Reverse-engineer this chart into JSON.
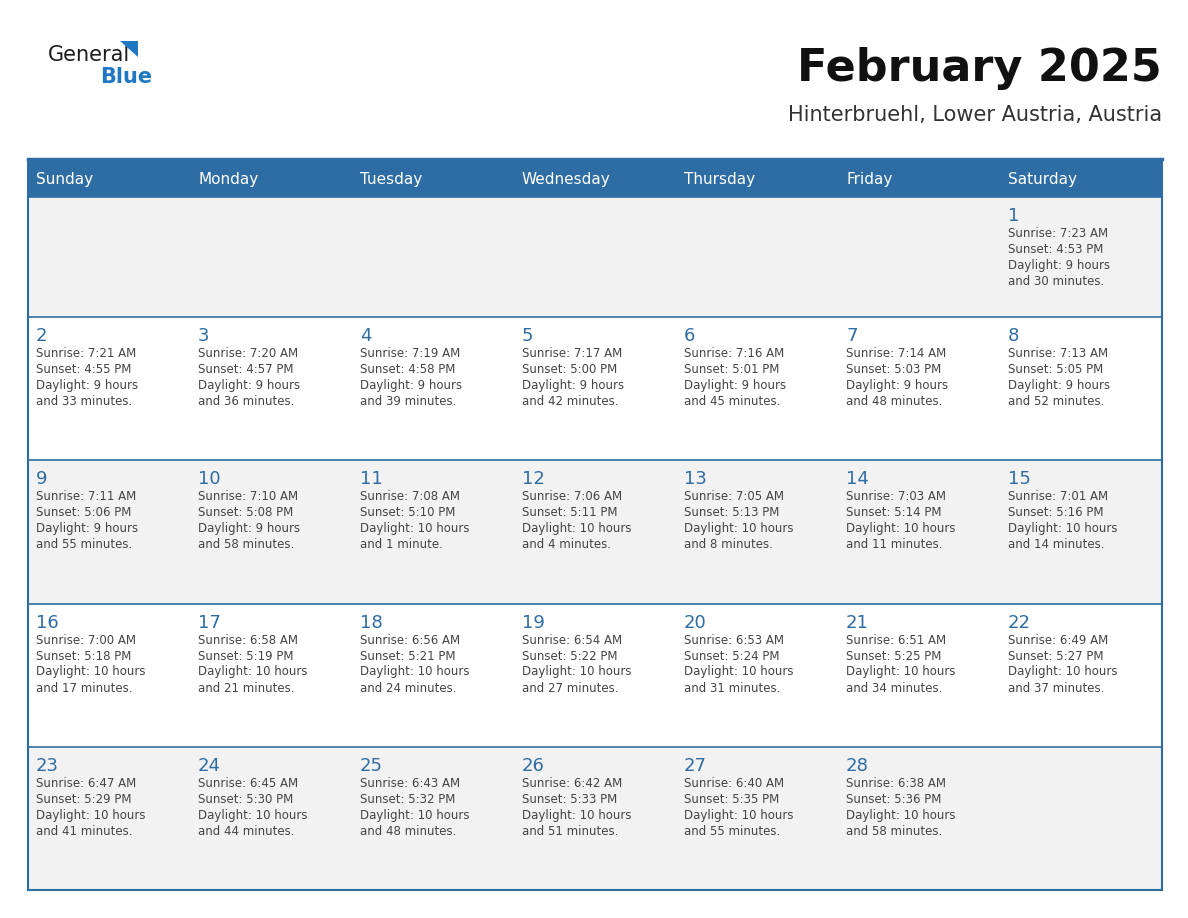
{
  "title": "February 2025",
  "subtitle": "Hinterbruehl, Lower Austria, Austria",
  "days_of_week": [
    "Sunday",
    "Monday",
    "Tuesday",
    "Wednesday",
    "Thursday",
    "Friday",
    "Saturday"
  ],
  "header_bg": "#2E6DA4",
  "header_text": "#FFFFFF",
  "cell_bg_odd": "#F2F2F2",
  "cell_bg_even": "#FFFFFF",
  "day_number_color": "#2E6DA4",
  "text_color": "#444444",
  "line_color": "#2E6DA4",
  "logo_general_color": "#1a1a1a",
  "logo_blue_color": "#2077C2",
  "calendar_data": [
    [
      {
        "day": null,
        "info": null
      },
      {
        "day": null,
        "info": null
      },
      {
        "day": null,
        "info": null
      },
      {
        "day": null,
        "info": null
      },
      {
        "day": null,
        "info": null
      },
      {
        "day": null,
        "info": null
      },
      {
        "day": 1,
        "info": "Sunrise: 7:23 AM\nSunset: 4:53 PM\nDaylight: 9 hours\nand 30 minutes."
      }
    ],
    [
      {
        "day": 2,
        "info": "Sunrise: 7:21 AM\nSunset: 4:55 PM\nDaylight: 9 hours\nand 33 minutes."
      },
      {
        "day": 3,
        "info": "Sunrise: 7:20 AM\nSunset: 4:57 PM\nDaylight: 9 hours\nand 36 minutes."
      },
      {
        "day": 4,
        "info": "Sunrise: 7:19 AM\nSunset: 4:58 PM\nDaylight: 9 hours\nand 39 minutes."
      },
      {
        "day": 5,
        "info": "Sunrise: 7:17 AM\nSunset: 5:00 PM\nDaylight: 9 hours\nand 42 minutes."
      },
      {
        "day": 6,
        "info": "Sunrise: 7:16 AM\nSunset: 5:01 PM\nDaylight: 9 hours\nand 45 minutes."
      },
      {
        "day": 7,
        "info": "Sunrise: 7:14 AM\nSunset: 5:03 PM\nDaylight: 9 hours\nand 48 minutes."
      },
      {
        "day": 8,
        "info": "Sunrise: 7:13 AM\nSunset: 5:05 PM\nDaylight: 9 hours\nand 52 minutes."
      }
    ],
    [
      {
        "day": 9,
        "info": "Sunrise: 7:11 AM\nSunset: 5:06 PM\nDaylight: 9 hours\nand 55 minutes."
      },
      {
        "day": 10,
        "info": "Sunrise: 7:10 AM\nSunset: 5:08 PM\nDaylight: 9 hours\nand 58 minutes."
      },
      {
        "day": 11,
        "info": "Sunrise: 7:08 AM\nSunset: 5:10 PM\nDaylight: 10 hours\nand 1 minute."
      },
      {
        "day": 12,
        "info": "Sunrise: 7:06 AM\nSunset: 5:11 PM\nDaylight: 10 hours\nand 4 minutes."
      },
      {
        "day": 13,
        "info": "Sunrise: 7:05 AM\nSunset: 5:13 PM\nDaylight: 10 hours\nand 8 minutes."
      },
      {
        "day": 14,
        "info": "Sunrise: 7:03 AM\nSunset: 5:14 PM\nDaylight: 10 hours\nand 11 minutes."
      },
      {
        "day": 15,
        "info": "Sunrise: 7:01 AM\nSunset: 5:16 PM\nDaylight: 10 hours\nand 14 minutes."
      }
    ],
    [
      {
        "day": 16,
        "info": "Sunrise: 7:00 AM\nSunset: 5:18 PM\nDaylight: 10 hours\nand 17 minutes."
      },
      {
        "day": 17,
        "info": "Sunrise: 6:58 AM\nSunset: 5:19 PM\nDaylight: 10 hours\nand 21 minutes."
      },
      {
        "day": 18,
        "info": "Sunrise: 6:56 AM\nSunset: 5:21 PM\nDaylight: 10 hours\nand 24 minutes."
      },
      {
        "day": 19,
        "info": "Sunrise: 6:54 AM\nSunset: 5:22 PM\nDaylight: 10 hours\nand 27 minutes."
      },
      {
        "day": 20,
        "info": "Sunrise: 6:53 AM\nSunset: 5:24 PM\nDaylight: 10 hours\nand 31 minutes."
      },
      {
        "day": 21,
        "info": "Sunrise: 6:51 AM\nSunset: 5:25 PM\nDaylight: 10 hours\nand 34 minutes."
      },
      {
        "day": 22,
        "info": "Sunrise: 6:49 AM\nSunset: 5:27 PM\nDaylight: 10 hours\nand 37 minutes."
      }
    ],
    [
      {
        "day": 23,
        "info": "Sunrise: 6:47 AM\nSunset: 5:29 PM\nDaylight: 10 hours\nand 41 minutes."
      },
      {
        "day": 24,
        "info": "Sunrise: 6:45 AM\nSunset: 5:30 PM\nDaylight: 10 hours\nand 44 minutes."
      },
      {
        "day": 25,
        "info": "Sunrise: 6:43 AM\nSunset: 5:32 PM\nDaylight: 10 hours\nand 48 minutes."
      },
      {
        "day": 26,
        "info": "Sunrise: 6:42 AM\nSunset: 5:33 PM\nDaylight: 10 hours\nand 51 minutes."
      },
      {
        "day": 27,
        "info": "Sunrise: 6:40 AM\nSunset: 5:35 PM\nDaylight: 10 hours\nand 55 minutes."
      },
      {
        "day": 28,
        "info": "Sunrise: 6:38 AM\nSunset: 5:36 PM\nDaylight: 10 hours\nand 58 minutes."
      },
      {
        "day": null,
        "info": null
      }
    ]
  ]
}
